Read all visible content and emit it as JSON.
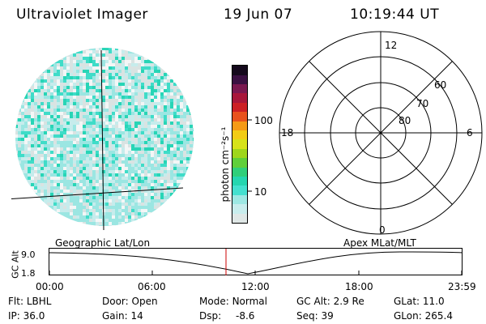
{
  "header": {
    "title": "Ultraviolet Imager",
    "date": "19 Jun 07",
    "time": "10:19:44 UT"
  },
  "colorbar": {
    "unit_label": "photon cm⁻²s⁻¹",
    "tick_100": "100",
    "tick_10": "10",
    "colors": [
      "#dfe7e6",
      "#c8eded",
      "#9de8e3",
      "#44e0cf",
      "#25d6b0",
      "#2fcf7a",
      "#5fcf3a",
      "#9ed61c",
      "#d6e21a",
      "#f2cc14",
      "#f59a16",
      "#e8521d",
      "#cc1f24",
      "#a8163a",
      "#7a1850",
      "#3a1042",
      "#14091c"
    ]
  },
  "polar_plot": {
    "labels": {
      "top": "12",
      "bottom": "0",
      "left": "18",
      "right": "6"
    },
    "lat_labels": [
      "60",
      "70",
      "80"
    ]
  },
  "timeline": {
    "left_title": "Geographic Lat/Lon",
    "right_title": "Apex MLat/MLT",
    "y_axis_label": "GC Alt",
    "y_ticks": [
      "9.0",
      "1.8"
    ],
    "x_ticks": [
      "00:00",
      "06:00",
      "12:00",
      "18:00",
      "23:59"
    ],
    "marker_color": "#cc0000"
  },
  "info": {
    "flt_label": "Flt:",
    "flt_value": "LBHL",
    "ip_label": "IP:",
    "ip_value": "36.0",
    "door_label": "Door:",
    "door_value": "Open",
    "gain_label": "Gain:",
    "gain_value": "14",
    "mode_label": "Mode:",
    "mode_value": "Normal",
    "dsp_label": "Dsp:",
    "dsp_value": "-8.6",
    "gcalt_label": "GC Alt:",
    "gcalt_value": "2.9 Re",
    "seq_label": "Seq:",
    "seq_value": "39",
    "glat_label": "GLat:",
    "glat_value": "11.0",
    "glon_label": "GLon:",
    "glon_value": "265.4"
  }
}
